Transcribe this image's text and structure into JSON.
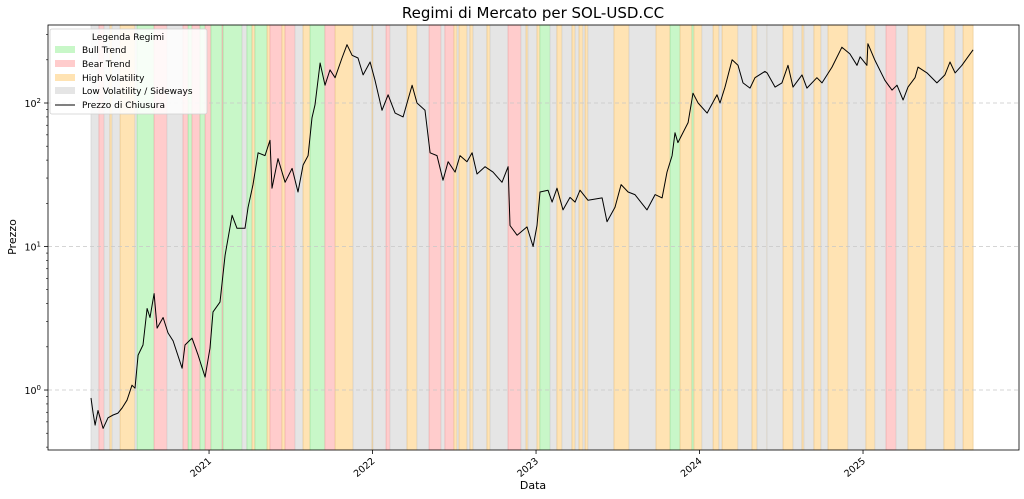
{
  "chart_data": {
    "type": "line",
    "title": "Regimi di Mercato per SOL-USD.CC",
    "xlabel": "Data",
    "ylabel": "Prezzo",
    "xlim": [
      2020.015,
      2025.954
    ],
    "ylim": [
      0.382,
      349.6
    ],
    "yscale": "log",
    "x_ticks": [
      2021,
      2022,
      2023,
      2024,
      2025
    ],
    "x_tick_labels": [
      "2021",
      "2022",
      "2023",
      "2024",
      "2025"
    ],
    "y_ticks": [
      1,
      10,
      100
    ],
    "y_tick_labels": [
      {
        "base": "10",
        "exp": "0"
      },
      {
        "base": "10",
        "exp": "1"
      },
      {
        "base": "10",
        "exp": "2"
      }
    ],
    "grid": "horizontal dashed at major y ticks",
    "legend": {
      "title": "Legenda Regimi",
      "placement": "top-left",
      "entries": [
        {
          "key": "bull",
          "label": "Bull Trend",
          "type": "patch"
        },
        {
          "key": "bear",
          "label": "Bear Trend",
          "type": "patch"
        },
        {
          "key": "high",
          "label": "High Volatility",
          "type": "patch"
        },
        {
          "key": "low",
          "label": "Low Volatility / Sideways",
          "type": "patch"
        },
        {
          "key": "price",
          "label": "Prezzo di Chiusura",
          "type": "line"
        }
      ]
    },
    "colors": {
      "bull": "#c8f7c8",
      "bear": "#ffcccc",
      "high": "#ffe3b3",
      "low": "#e5e5e5",
      "price": "#000000"
    },
    "regimes": [
      [
        2020.278,
        2020.327,
        "low"
      ],
      [
        2020.327,
        2020.358,
        "bear"
      ],
      [
        2020.358,
        2020.394,
        "low"
      ],
      [
        2020.394,
        2020.407,
        "high"
      ],
      [
        2020.407,
        2020.456,
        "low"
      ],
      [
        2020.456,
        2020.547,
        "high"
      ],
      [
        2020.547,
        2020.56,
        "low"
      ],
      [
        2020.56,
        2020.664,
        "bull"
      ],
      [
        2020.664,
        2020.743,
        "bear"
      ],
      [
        2020.743,
        2020.841,
        "low"
      ],
      [
        2020.841,
        2020.872,
        "bear"
      ],
      [
        2020.872,
        2020.896,
        "bull"
      ],
      [
        2020.896,
        2020.945,
        "bear"
      ],
      [
        2020.945,
        2020.976,
        "bull"
      ],
      [
        2020.976,
        2021.012,
        "bear"
      ],
      [
        2021.012,
        2021.08,
        "bull"
      ],
      [
        2021.08,
        2021.086,
        "bear"
      ],
      [
        2021.086,
        2021.202,
        "bull"
      ],
      [
        2021.202,
        2021.232,
        "low"
      ],
      [
        2021.232,
        2021.263,
        "bull"
      ],
      [
        2021.263,
        2021.281,
        "high"
      ],
      [
        2021.281,
        2021.355,
        "bull"
      ],
      [
        2021.355,
        2021.373,
        "high"
      ],
      [
        2021.373,
        2021.446,
        "bear"
      ],
      [
        2021.446,
        2021.465,
        "high"
      ],
      [
        2021.465,
        2021.526,
        "bear"
      ],
      [
        2021.526,
        2021.575,
        "low"
      ],
      [
        2021.575,
        2021.618,
        "high"
      ],
      [
        2021.618,
        2021.709,
        "bull"
      ],
      [
        2021.709,
        2021.771,
        "bear"
      ],
      [
        2021.771,
        2021.881,
        "high"
      ],
      [
        2021.881,
        2021.997,
        "low"
      ],
      [
        2021.997,
        2022.003,
        "high"
      ],
      [
        2022.003,
        2022.083,
        "low"
      ],
      [
        2022.083,
        2022.107,
        "bear"
      ],
      [
        2022.107,
        2022.211,
        "low"
      ],
      [
        2022.211,
        2022.272,
        "high"
      ],
      [
        2022.272,
        2022.346,
        "low"
      ],
      [
        2022.346,
        2022.419,
        "bear"
      ],
      [
        2022.419,
        2022.443,
        "low"
      ],
      [
        2022.443,
        2022.498,
        "bear"
      ],
      [
        2022.498,
        2022.517,
        "high"
      ],
      [
        2022.517,
        2022.529,
        "low"
      ],
      [
        2022.529,
        2022.578,
        "high"
      ],
      [
        2022.578,
        2022.596,
        "low"
      ],
      [
        2022.596,
        2022.615,
        "high"
      ],
      [
        2022.615,
        2022.7,
        "low"
      ],
      [
        2022.7,
        2022.719,
        "high"
      ],
      [
        2022.719,
        2022.829,
        "low"
      ],
      [
        2022.829,
        2022.908,
        "bear"
      ],
      [
        2022.908,
        2022.939,
        "low"
      ],
      [
        2022.939,
        2022.951,
        "high"
      ],
      [
        2022.951,
        2023.006,
        "low"
      ],
      [
        2023.006,
        2023.024,
        "high"
      ],
      [
        2023.024,
        2023.086,
        "bull"
      ],
      [
        2023.086,
        2023.128,
        "low"
      ],
      [
        2023.128,
        2023.159,
        "high"
      ],
      [
        2023.159,
        2023.22,
        "low"
      ],
      [
        2023.22,
        2023.239,
        "high"
      ],
      [
        2023.239,
        2023.263,
        "low"
      ],
      [
        2023.263,
        2023.287,
        "high"
      ],
      [
        2023.287,
        2023.3,
        "low"
      ],
      [
        2023.3,
        2023.318,
        "high"
      ],
      [
        2023.318,
        2023.477,
        "low"
      ],
      [
        2023.477,
        2023.569,
        "high"
      ],
      [
        2023.569,
        2023.734,
        "low"
      ],
      [
        2023.734,
        2023.82,
        "high"
      ],
      [
        2023.82,
        2023.881,
        "bull"
      ],
      [
        2023.881,
        2023.954,
        "high"
      ],
      [
        2023.954,
        2023.966,
        "bull"
      ],
      [
        2023.966,
        2024.015,
        "high"
      ],
      [
        2024.015,
        2024.083,
        "low"
      ],
      [
        2024.083,
        2024.119,
        "high"
      ],
      [
        2024.119,
        2024.138,
        "low"
      ],
      [
        2024.138,
        2024.235,
        "high"
      ],
      [
        2024.235,
        2024.321,
        "low"
      ],
      [
        2024.321,
        2024.352,
        "high"
      ],
      [
        2024.352,
        2024.413,
        "low"
      ],
      [
        2024.413,
        2024.413,
        "high"
      ],
      [
        2024.413,
        2024.511,
        "low"
      ],
      [
        2024.511,
        2024.572,
        "high"
      ],
      [
        2024.572,
        2024.627,
        "low"
      ],
      [
        2024.627,
        2024.639,
        "high"
      ],
      [
        2024.639,
        2024.7,
        "low"
      ],
      [
        2024.7,
        2024.743,
        "high"
      ],
      [
        2024.743,
        2024.786,
        "low"
      ],
      [
        2024.786,
        2024.908,
        "high"
      ],
      [
        2024.908,
        2025.018,
        "low"
      ],
      [
        2025.018,
        2025.073,
        "high"
      ],
      [
        2025.073,
        2025.141,
        "low"
      ],
      [
        2025.141,
        2025.202,
        "bear"
      ],
      [
        2025.202,
        2025.275,
        "low"
      ],
      [
        2025.275,
        2025.385,
        "high"
      ],
      [
        2025.385,
        2025.495,
        "low"
      ],
      [
        2025.495,
        2025.563,
        "high"
      ],
      [
        2025.563,
        2025.612,
        "low"
      ],
      [
        2025.612,
        2025.673,
        "high"
      ]
    ],
    "series": [
      {
        "name": "Prezzo di Chiusura",
        "x": [
          2020.278,
          2020.291,
          2020.303,
          2020.321,
          2020.352,
          2020.382,
          2020.413,
          2020.443,
          2020.468,
          2020.498,
          2020.529,
          2020.547,
          2020.566,
          2020.596,
          2020.621,
          2020.639,
          2020.664,
          2020.682,
          2020.719,
          2020.749,
          2020.78,
          2020.835,
          2020.853,
          2020.896,
          2020.933,
          2020.976,
          2021.006,
          2021.024,
          2021.067,
          2021.098,
          2021.141,
          2021.171,
          2021.22,
          2021.239,
          2021.269,
          2021.3,
          2021.342,
          2021.373,
          2021.385,
          2021.422,
          2021.465,
          2021.508,
          2021.544,
          2021.575,
          2021.606,
          2021.63,
          2021.648,
          2021.679,
          2021.709,
          2021.74,
          2021.771,
          2021.813,
          2021.844,
          2021.875,
          2021.911,
          2021.942,
          2021.985,
          2022.015,
          2022.058,
          2022.095,
          2022.138,
          2022.187,
          2022.242,
          2022.272,
          2022.321,
          2022.352,
          2022.394,
          2022.431,
          2022.462,
          2022.505,
          2022.535,
          2022.578,
          2022.609,
          2022.639,
          2022.688,
          2022.737,
          2022.792,
          2022.829,
          2022.841,
          2022.884,
          2022.945,
          2022.982,
          2023.006,
          2023.024,
          2023.073,
          2023.098,
          2023.128,
          2023.165,
          2023.208,
          2023.239,
          2023.269,
          2023.318,
          2023.404,
          2023.434,
          2023.483,
          2023.52,
          2023.563,
          2023.605,
          2023.679,
          2023.728,
          2023.771,
          2023.801,
          2023.832,
          2023.85,
          2023.868,
          2023.93,
          2023.96,
          2023.991,
          2024.046,
          2024.107,
          2024.125,
          2024.156,
          2024.199,
          2024.235,
          2024.266,
          2024.309,
          2024.339,
          2024.4,
          2024.413,
          2024.462,
          2024.504,
          2024.541,
          2024.572,
          2024.627,
          2024.657,
          2024.718,
          2024.749,
          2024.81,
          2024.871,
          2024.92,
          2024.963,
          2024.982,
          2025.024,
          2025.03,
          2025.073,
          2025.134,
          2025.177,
          2025.208,
          2025.245,
          2025.275,
          2025.318,
          2025.336,
          2025.391,
          2025.452,
          2025.501,
          2025.532,
          2025.563,
          2025.605,
          2025.642,
          2025.673
        ],
        "y": [
          0.88,
          0.69,
          0.57,
          0.72,
          0.54,
          0.64,
          0.67,
          0.69,
          0.75,
          0.85,
          1.08,
          1.03,
          1.75,
          2.06,
          3.7,
          3.2,
          4.7,
          2.7,
          3.2,
          2.5,
          2.2,
          1.42,
          2.06,
          2.3,
          1.75,
          1.23,
          1.96,
          3.5,
          4.1,
          8.7,
          16.5,
          13.4,
          13.4,
          18.8,
          27,
          45,
          43,
          55,
          25.5,
          41,
          28,
          35,
          24,
          37,
          43,
          79,
          97,
          190,
          133,
          170,
          150,
          206,
          255,
          215,
          206,
          157,
          193,
          144,
          89,
          114,
          85,
          80,
          133,
          100,
          89,
          45,
          43,
          29,
          39,
          33,
          43,
          39,
          45,
          32,
          36,
          33,
          28,
          36,
          14,
          12,
          13.7,
          10,
          14,
          24,
          24.7,
          20.4,
          25.5,
          18,
          22,
          20.4,
          24.7,
          21,
          21.8,
          14.9,
          18.8,
          27,
          24,
          23,
          18,
          23,
          21.8,
          33,
          43,
          62,
          53,
          73,
          117,
          100,
          85,
          114,
          100,
          129,
          200,
          183,
          138,
          127,
          150,
          166,
          162,
          129,
          138,
          183,
          129,
          157,
          127,
          150,
          138,
          178,
          245,
          220,
          183,
          210,
          183,
          259,
          198,
          144,
          123,
          133,
          105,
          129,
          150,
          178,
          162,
          138,
          157,
          193,
          162,
          183,
          210,
          235
        ]
      }
    ]
  }
}
